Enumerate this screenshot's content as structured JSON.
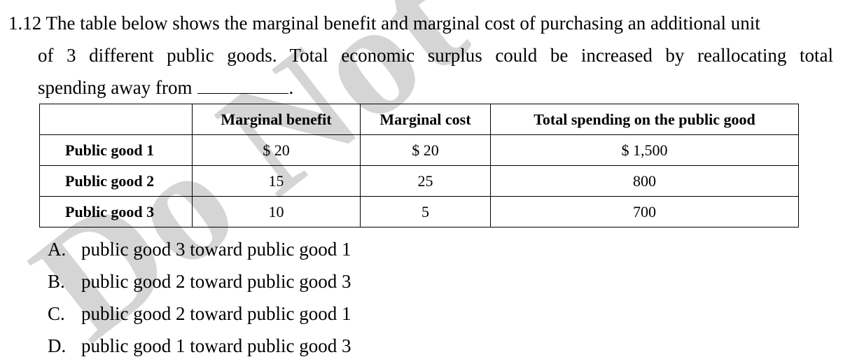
{
  "question": {
    "number": "1.12",
    "line1": "The table below shows the marginal benefit and marginal cost of purchasing an additional unit",
    "line2": "of 3 different public goods. Total economic surplus could be increased by reallocating total",
    "line3": "spending away from",
    "line3_end": "."
  },
  "table": {
    "headers": [
      "",
      "Marginal benefit",
      "Marginal cost",
      "Total spending on the public good"
    ],
    "rows": [
      {
        "label": "Public good 1",
        "benefit": "$ 20",
        "cost": "$ 20",
        "spending": "$ 1,500"
      },
      {
        "label": "Public good 2",
        "benefit": "15",
        "cost": "25",
        "spending": "800"
      },
      {
        "label": "Public good 3",
        "benefit": "10",
        "cost": "5",
        "spending": "700"
      }
    ]
  },
  "options": [
    {
      "letter": "A.",
      "text": "public good 3 toward public good 1"
    },
    {
      "letter": "B.",
      "text": "public good 2 toward public good 3"
    },
    {
      "letter": "C.",
      "text": "public good 2 toward public good 1"
    },
    {
      "letter": "D.",
      "text": "public good 1 toward public good 3"
    }
  ],
  "watermark": {
    "text": "Do Not",
    "color": "#c8c8c8"
  }
}
